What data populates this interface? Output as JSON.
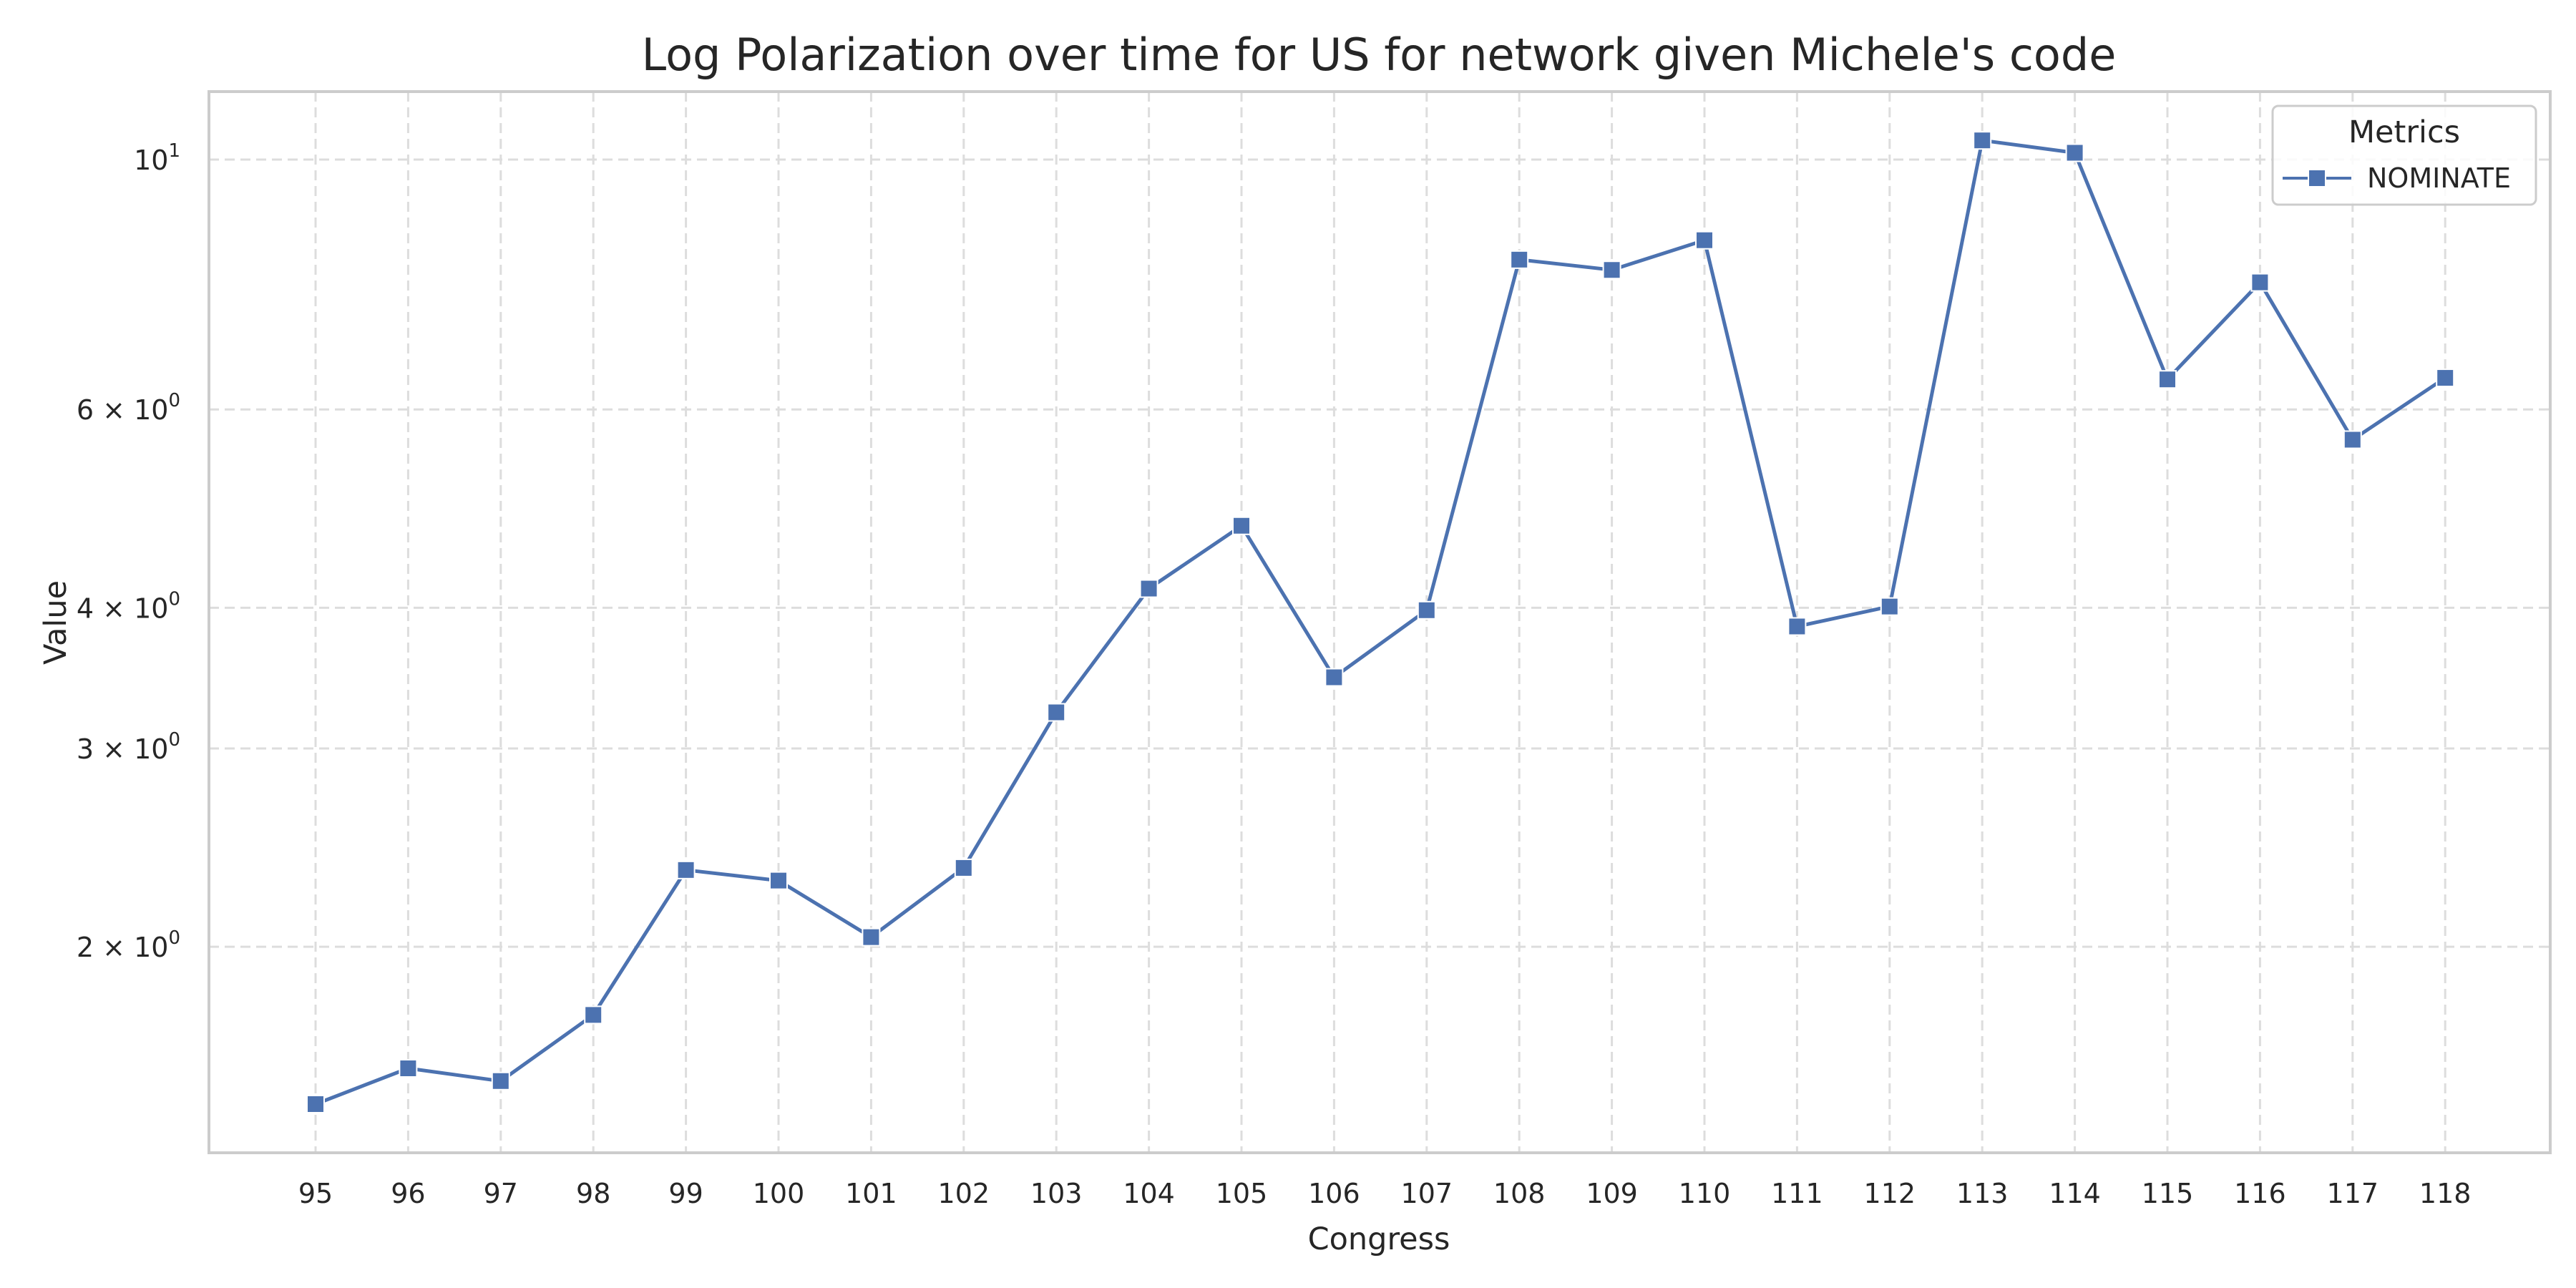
{
  "chart_data": {
    "type": "line",
    "title": "Log Polarization over time for US for network given Michele's code",
    "xlabel": "Congress",
    "ylabel": "Value",
    "y_scale": "log",
    "ylim": [
      1.35,
      11.5
    ],
    "grid": true,
    "legend_title": "Metrics",
    "legend_position": "top-right",
    "categories": [
      "95",
      "96",
      "97",
      "98",
      "99",
      "100",
      "101",
      "102",
      "103",
      "104",
      "105",
      "106",
      "107",
      "108",
      "109",
      "110",
      "111",
      "112",
      "113",
      "114",
      "115",
      "116",
      "117",
      "118"
    ],
    "y_ticks": [
      {
        "value": 2,
        "mantissa": "2",
        "exponent": "0"
      },
      {
        "value": 3,
        "mantissa": "3",
        "exponent": "0"
      },
      {
        "value": 4,
        "mantissa": "4",
        "exponent": "0"
      },
      {
        "value": 6,
        "mantissa": "6",
        "exponent": "0"
      },
      {
        "value": 10,
        "mantissa": "",
        "exponent": "1"
      }
    ],
    "series": [
      {
        "name": "NOMINATE",
        "color": "#4c72b0",
        "marker": "square",
        "values": [
          1.45,
          1.56,
          1.52,
          1.74,
          2.34,
          2.29,
          2.04,
          2.35,
          3.23,
          4.16,
          4.73,
          3.47,
          3.98,
          8.15,
          7.98,
          8.48,
          3.85,
          4.01,
          10.4,
          10.14,
          6.38,
          7.78,
          5.64,
          6.4
        ]
      }
    ]
  }
}
